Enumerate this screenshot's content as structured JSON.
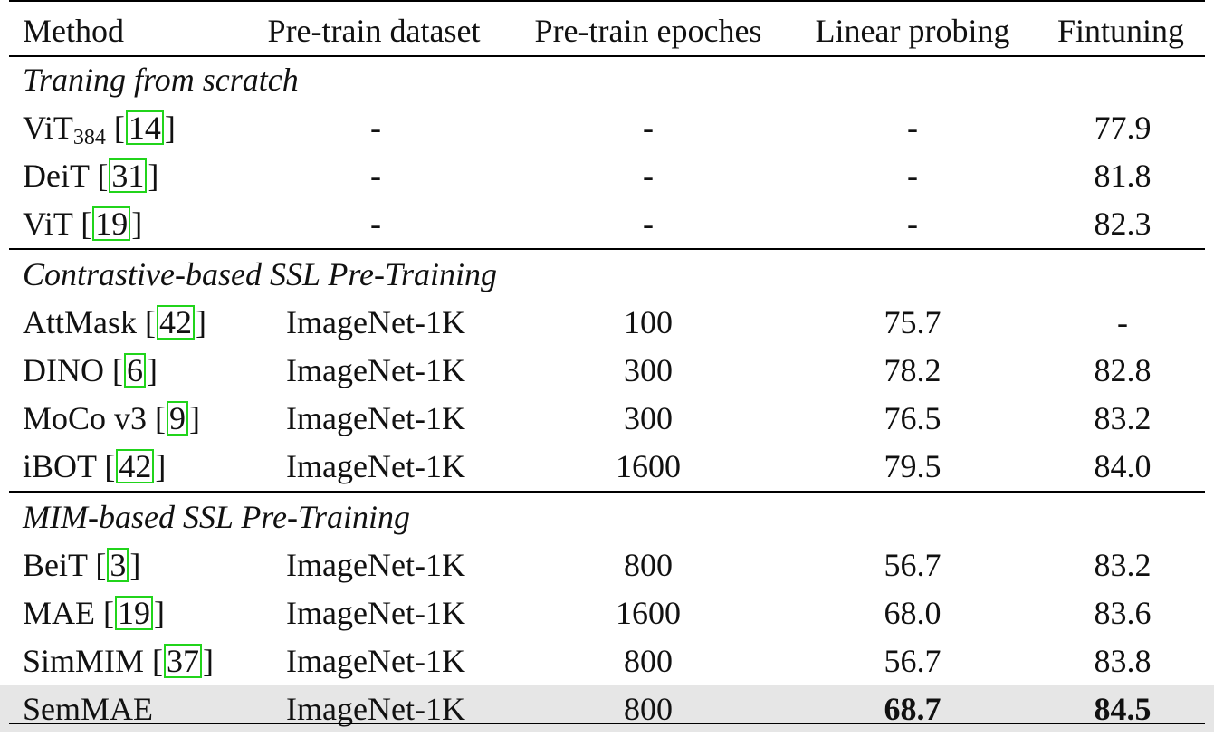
{
  "header": [
    "Method",
    "Pre-train dataset",
    "Pre-train epoches",
    "Linear probing",
    "Fintuning"
  ],
  "sections": [
    {
      "title": "Traning from scratch",
      "rows": [
        {
          "method": "ViT",
          "sub": "384",
          "ref": "14",
          "dataset": "-",
          "epochs": "-",
          "linear": "-",
          "finetune": "77.9"
        },
        {
          "method": "DeiT",
          "ref": "31",
          "dataset": "-",
          "epochs": "-",
          "linear": "-",
          "finetune": "81.8"
        },
        {
          "method": "ViT",
          "ref": "19",
          "dataset": "-",
          "epochs": "-",
          "linear": "-",
          "finetune": "82.3"
        }
      ]
    },
    {
      "title": "Contrastive-based SSL Pre-Training",
      "rows": [
        {
          "method": "AttMask",
          "ref": "42",
          "dataset": "ImageNet-1K",
          "epochs": "100",
          "linear": "75.7",
          "finetune": "-"
        },
        {
          "method": "DINO",
          "ref": "6",
          "dataset": "ImageNet-1K",
          "epochs": "300",
          "linear": "78.2",
          "finetune": "82.8"
        },
        {
          "method": "MoCo v3",
          "ref": "9",
          "dataset": "ImageNet-1K",
          "epochs": "300",
          "linear": "76.5",
          "finetune": "83.2"
        },
        {
          "method": "iBOT",
          "ref": "42",
          "dataset": "ImageNet-1K",
          "epochs": "1600",
          "linear": "79.5",
          "finetune": "84.0"
        }
      ]
    },
    {
      "title": "MIM-based SSL Pre-Training",
      "rows": [
        {
          "method": "BeiT",
          "ref": "3",
          "dataset": "ImageNet-1K",
          "epochs": "800",
          "linear": "56.7",
          "finetune": "83.2"
        },
        {
          "method": "MAE",
          "ref": "19",
          "dataset": "ImageNet-1K",
          "epochs": "1600",
          "linear": "68.0",
          "finetune": "83.6"
        },
        {
          "method": "SimMIM",
          "ref": "37",
          "dataset": "ImageNet-1K",
          "epochs": "800",
          "linear": "56.7",
          "finetune": "83.8"
        },
        {
          "method": "SemMAE",
          "dataset": "ImageNet-1K",
          "epochs": "800",
          "linear": "68.7",
          "finetune": "84.5",
          "highlight": true,
          "bold": true
        }
      ]
    }
  ]
}
